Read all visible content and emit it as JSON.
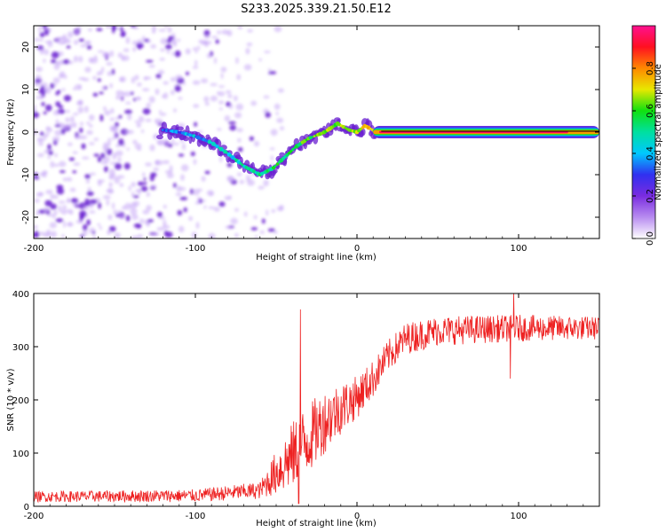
{
  "title": "S233.2025.339.21.50.E12",
  "colors": {
    "snr_line": "#ee2222",
    "trace_dark": "#6a1fd0",
    "trace_light": "#c6a8f5",
    "axis": "#000000"
  },
  "chart_data": [
    {
      "type": "heatmap",
      "xlabel": "Height of straight line (km)",
      "ylabel": "Frequency (Hz)",
      "xlim": [
        -200,
        150
      ],
      "ylim": [
        -25,
        25
      ],
      "xticks": [
        -200,
        -100,
        0,
        100
      ],
      "yticks": [
        -20,
        -10,
        0,
        10,
        20
      ],
      "colorbar": {
        "label": "Normalized spectral amplitude",
        "range": [
          0,
          1
        ],
        "ticks": [
          "0.0",
          "0.2",
          "0.4",
          "0.6",
          "0.8"
        ],
        "tick_values": [
          0,
          0.2,
          0.4,
          0.6,
          0.8
        ],
        "colormap": [
          "#ffffff",
          "#b88cf0",
          "#7a2ce0",
          "#3030f0",
          "#00c8ff",
          "#00e0a0",
          "#10e010",
          "#e8e800",
          "#ff8800",
          "#ff1020",
          "#ff1090"
        ]
      },
      "noise_region_x": [
        -200,
        -55
      ],
      "doppler_track": [
        {
          "x": -120,
          "y": 0.5
        },
        {
          "x": -110,
          "y": 0
        },
        {
          "x": -100,
          "y": -1
        },
        {
          "x": -90,
          "y": -2.5
        },
        {
          "x": -80,
          "y": -5
        },
        {
          "x": -70,
          "y": -8
        },
        {
          "x": -60,
          "y": -10
        },
        {
          "x": -52,
          "y": -8.5
        },
        {
          "x": -45,
          "y": -6
        },
        {
          "x": -38,
          "y": -3.5
        },
        {
          "x": -30,
          "y": -1.5
        },
        {
          "x": -20,
          "y": 0
        },
        {
          "x": -12,
          "y": 2
        },
        {
          "x": -5,
          "y": 0.5
        },
        {
          "x": 0,
          "y": 0
        },
        {
          "x": 5,
          "y": 1.5
        },
        {
          "x": 12,
          "y": 0
        },
        {
          "x": 150,
          "y": 0
        }
      ],
      "carrier_band": {
        "x_start": 10,
        "x_end": 150,
        "y": 0,
        "peak_amplitude": 1.0
      }
    },
    {
      "type": "line",
      "xlabel": "Height of straight line (km)",
      "ylabel": "SNR (10 * v/v)",
      "xlim": [
        -200,
        150
      ],
      "ylim": [
        0,
        400
      ],
      "xticks": [
        -200,
        -100,
        0,
        100
      ],
      "yticks": [
        0,
        100,
        200,
        300,
        400
      ],
      "series": [
        {
          "name": "SNR",
          "envelope": [
            {
              "x": -200,
              "mean": 18,
              "noise": 10
            },
            {
              "x": -100,
              "mean": 20,
              "noise": 12
            },
            {
              "x": -60,
              "mean": 30,
              "noise": 16
            },
            {
              "x": -45,
              "mean": 80,
              "noise": 55
            },
            {
              "x": -35,
              "mean": 110,
              "noise": 70
            },
            {
              "x": -20,
              "mean": 160,
              "noise": 60
            },
            {
              "x": -10,
              "mean": 185,
              "noise": 50
            },
            {
              "x": 0,
              "mean": 205,
              "noise": 40
            },
            {
              "x": 10,
              "mean": 240,
              "noise": 35
            },
            {
              "x": 20,
              "mean": 285,
              "noise": 30
            },
            {
              "x": 30,
              "mean": 315,
              "noise": 30
            },
            {
              "x": 50,
              "mean": 330,
              "noise": 28
            },
            {
              "x": 100,
              "mean": 335,
              "noise": 25
            },
            {
              "x": 150,
              "mean": 335,
              "noise": 22
            }
          ],
          "spikes": [
            {
              "x": -35,
              "y": 370
            },
            {
              "x": -36,
              "y": 5
            },
            {
              "x": 95,
              "y": 240
            },
            {
              "x": 97,
              "y": 400
            }
          ]
        }
      ]
    }
  ]
}
